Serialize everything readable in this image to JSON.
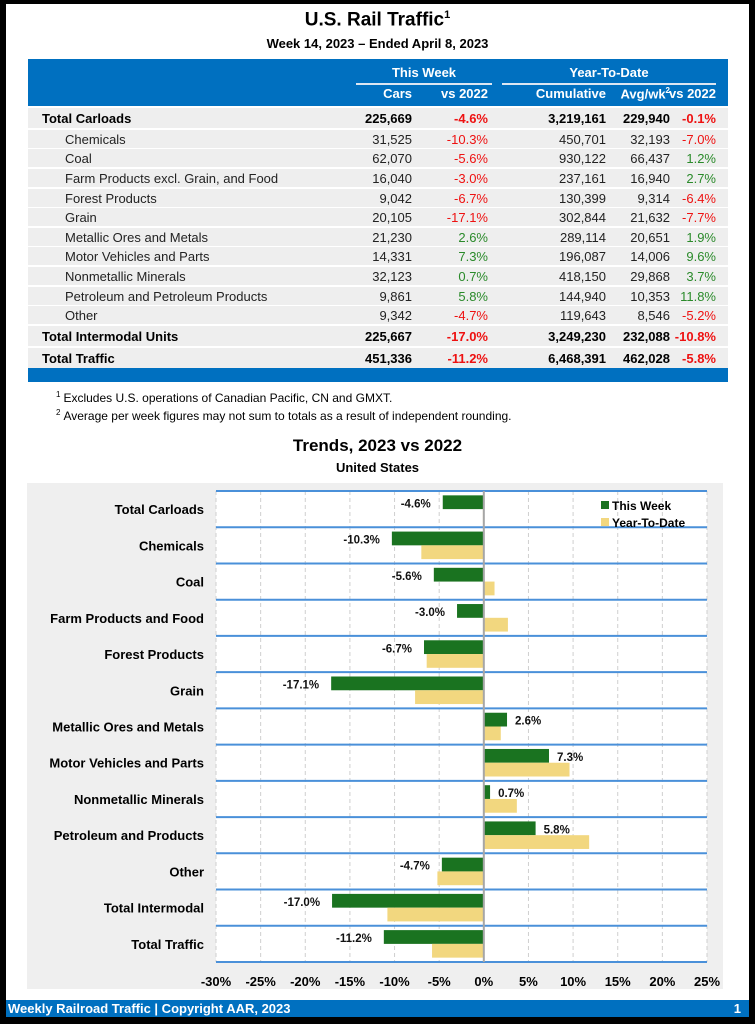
{
  "header": {
    "title": "U.S. Rail Traffic",
    "title_sup": "1",
    "subtitle": "Week 14, 2023 – Ended April 8, 2023"
  },
  "table": {
    "group_headers": {
      "this_week": "This Week",
      "ytd": "Year-To-Date"
    },
    "columns": {
      "cars": "Cars",
      "tw_vs": "vs 2022",
      "cumulative": "Cumulative",
      "avgwk": "Avg/wk",
      "avgwk_sup": "2",
      "ytd_vs": "vs 2022"
    },
    "rows": [
      {
        "label": "Total Carloads",
        "type": "total",
        "cars": "225,669",
        "tw_vs": "-4.6%",
        "cumulative": "3,219,161",
        "avgwk": "229,940",
        "ytd_vs": "-0.1%"
      },
      {
        "label": "Chemicals",
        "type": "sub",
        "cars": "31,525",
        "tw_vs": "-10.3%",
        "cumulative": "450,701",
        "avgwk": "32,193",
        "ytd_vs": "-7.0%"
      },
      {
        "label": "Coal",
        "type": "sub",
        "cars": "62,070",
        "tw_vs": "-5.6%",
        "cumulative": "930,122",
        "avgwk": "66,437",
        "ytd_vs": "1.2%"
      },
      {
        "label": "Farm Products excl. Grain, and Food",
        "type": "sub",
        "cars": "16,040",
        "tw_vs": "-3.0%",
        "cumulative": "237,161",
        "avgwk": "16,940",
        "ytd_vs": "2.7%"
      },
      {
        "label": "Forest Products",
        "type": "sub",
        "cars": "9,042",
        "tw_vs": "-6.7%",
        "cumulative": "130,399",
        "avgwk": "9,314",
        "ytd_vs": "-6.4%"
      },
      {
        "label": "Grain",
        "type": "sub",
        "cars": "20,105",
        "tw_vs": "-17.1%",
        "cumulative": "302,844",
        "avgwk": "21,632",
        "ytd_vs": "-7.7%"
      },
      {
        "label": "Metallic Ores and Metals",
        "type": "sub",
        "cars": "21,230",
        "tw_vs": "2.6%",
        "cumulative": "289,114",
        "avgwk": "20,651",
        "ytd_vs": "1.9%"
      },
      {
        "label": "Motor Vehicles and Parts",
        "type": "sub",
        "cars": "14,331",
        "tw_vs": "7.3%",
        "cumulative": "196,087",
        "avgwk": "14,006",
        "ytd_vs": "9.6%"
      },
      {
        "label": "Nonmetallic Minerals",
        "type": "sub",
        "cars": "32,123",
        "tw_vs": "0.7%",
        "cumulative": "418,150",
        "avgwk": "29,868",
        "ytd_vs": "3.7%"
      },
      {
        "label": "Petroleum and Petroleum Products",
        "type": "sub",
        "cars": "9,861",
        "tw_vs": "5.8%",
        "cumulative": "144,940",
        "avgwk": "10,353",
        "ytd_vs": "11.8%"
      },
      {
        "label": "Other",
        "type": "sub",
        "cars": "9,342",
        "tw_vs": "-4.7%",
        "cumulative": "119,643",
        "avgwk": "8,546",
        "ytd_vs": "-5.2%"
      },
      {
        "label": "Total Intermodal Units",
        "type": "total",
        "cars": "225,667",
        "tw_vs": "-17.0%",
        "cumulative": "3,249,230",
        "avgwk": "232,088",
        "ytd_vs": "-10.8%"
      },
      {
        "label": "Total Traffic",
        "type": "total",
        "cars": "451,336",
        "tw_vs": "-11.2%",
        "cumulative": "6,468,391",
        "avgwk": "462,028",
        "ytd_vs": "-5.8%"
      }
    ]
  },
  "footnotes": [
    {
      "mark": "1",
      "text": "Excludes U.S. operations of Canadian Pacific, CN and GMXT."
    },
    {
      "mark": "2",
      "text": "Average per week figures may not sum to totals as a result of independent rounding."
    }
  ],
  "colors": {
    "header_blue": "#0070c0",
    "negative": "#ee1111",
    "positive": "#2a8a2a",
    "this_week_bar": "#1a7320",
    "ytd_bar": "#f2d77f"
  },
  "chart_data": {
    "type": "bar",
    "orientation": "horizontal",
    "title": "Trends, 2023 vs 2022",
    "subtitle": "United States",
    "categories": [
      "Total Carloads",
      "Chemicals",
      "Coal",
      "Farm Products and Food",
      "Forest Products",
      "Grain",
      "Metallic Ores and Metals",
      "Motor Vehicles and Parts",
      "Nonmetallic Minerals",
      "Petroleum and Products",
      "Other",
      "Total Intermodal",
      "Total Traffic"
    ],
    "series": [
      {
        "name": "This Week",
        "values": [
          -4.6,
          -10.3,
          -5.6,
          -3.0,
          -6.7,
          -17.1,
          2.6,
          7.3,
          0.7,
          5.8,
          -4.7,
          -17.0,
          -11.2
        ],
        "data_labels": [
          "-4.6%",
          "-10.3%",
          "-5.6%",
          "-3.0%",
          "-6.7%",
          "-17.1%",
          "2.6%",
          "7.3%",
          "0.7%",
          "5.8%",
          "-4.7%",
          "-17.0%",
          "-11.2%"
        ]
      },
      {
        "name": "Year-To-Date",
        "values": [
          -0.1,
          -7.0,
          1.2,
          2.7,
          -6.4,
          -7.7,
          1.9,
          9.6,
          3.7,
          11.8,
          -5.2,
          -10.8,
          -5.8
        ]
      }
    ],
    "xlim": [
      -30,
      25
    ],
    "xticks": [
      -30,
      -25,
      -20,
      -15,
      -10,
      -5,
      0,
      5,
      10,
      15,
      20,
      25
    ],
    "xtick_labels": [
      "-30%",
      "-25%",
      "-20%",
      "-15%",
      "-10%",
      "-5%",
      "0%",
      "5%",
      "10%",
      "15%",
      "20%",
      "25%"
    ],
    "xlabel": "",
    "ylabel": "",
    "grid": true,
    "legend": "top-right"
  },
  "footer": {
    "left": "Weekly Railroad Traffic | Copyright AAR, 2023",
    "page": "1"
  }
}
